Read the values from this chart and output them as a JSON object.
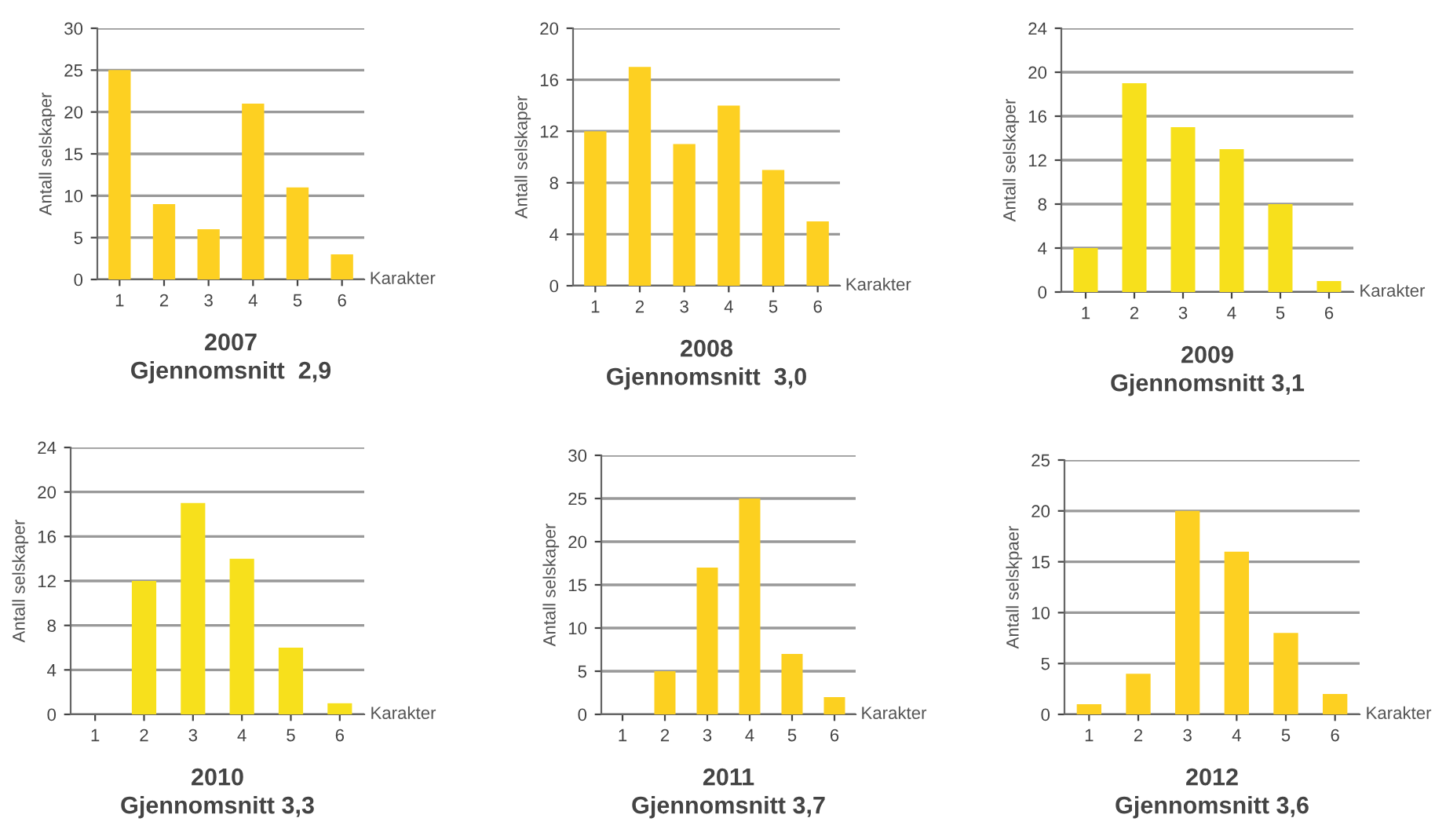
{
  "chart_data": [
    {
      "type": "bar",
      "title": "2007",
      "subtitle": "Gjennomsnitt  2,9",
      "xlabel": "Karakter",
      "ylabel": "Antall selskaper",
      "categories": [
        "1",
        "2",
        "3",
        "4",
        "5",
        "6"
      ],
      "values": [
        25,
        9,
        6,
        21,
        11,
        3
      ],
      "color": "#fdd022",
      "ylim": [
        0,
        30
      ],
      "yticks": [
        0,
        5,
        10,
        15,
        20,
        25,
        30
      ],
      "grid": "y"
    },
    {
      "type": "bar",
      "title": "2008",
      "subtitle": "Gjennomsnitt  3,0",
      "xlabel": "Karakter",
      "ylabel": "Antall selskaper",
      "categories": [
        "1",
        "2",
        "3",
        "4",
        "5",
        "6"
      ],
      "values": [
        12,
        17,
        11,
        14,
        9,
        5
      ],
      "color": "#fdd022",
      "ylim": [
        0,
        20
      ],
      "yticks": [
        0,
        4,
        8,
        12,
        16,
        20
      ],
      "grid": "y"
    },
    {
      "type": "bar",
      "title": "2009",
      "subtitle": "Gjennomsnitt 3,1",
      "xlabel": "Karakter",
      "ylabel": "Antall selskaper",
      "categories": [
        "1",
        "2",
        "3",
        "4",
        "5",
        "6"
      ],
      "values": [
        4,
        19,
        15,
        13,
        8,
        1
      ],
      "color": "#f7e01c",
      "ylim": [
        0,
        24
      ],
      "yticks": [
        0,
        4,
        8,
        12,
        16,
        20,
        24
      ],
      "grid": "y"
    },
    {
      "type": "bar",
      "title": "2010",
      "subtitle": "Gjennomsnitt 3,3",
      "xlabel": "Karakter",
      "ylabel": "Antall selskaper",
      "categories": [
        "1",
        "2",
        "3",
        "4",
        "5",
        "6"
      ],
      "values": [
        0,
        12,
        19,
        14,
        6,
        1
      ],
      "color": "#f7e01c",
      "ylim": [
        0,
        24
      ],
      "yticks": [
        0,
        4,
        8,
        12,
        16,
        20,
        24
      ],
      "grid": "y"
    },
    {
      "type": "bar",
      "title": "2011",
      "subtitle": "Gjennomsnitt 3,7",
      "xlabel": "Karakter",
      "ylabel": "Antall selskaper",
      "categories": [
        "1",
        "2",
        "3",
        "4",
        "5",
        "6"
      ],
      "values": [
        0,
        5,
        17,
        25,
        7,
        2
      ],
      "color": "#fcd020",
      "ylim": [
        0,
        30
      ],
      "yticks": [
        0,
        5,
        10,
        15,
        20,
        25,
        30
      ],
      "grid": "y"
    },
    {
      "type": "bar",
      "title": "2012",
      "subtitle": "Gjennomsnitt 3,6",
      "xlabel": "Karakter",
      "ylabel": "Antall selskpaer",
      "categories": [
        "1",
        "2",
        "3",
        "4",
        "5",
        "6"
      ],
      "values": [
        1,
        4,
        20,
        16,
        8,
        2
      ],
      "color": "#fdd022",
      "ylim": [
        0,
        25
      ],
      "yticks": [
        0,
        5,
        10,
        15,
        20,
        25
      ],
      "grid": "y"
    }
  ]
}
